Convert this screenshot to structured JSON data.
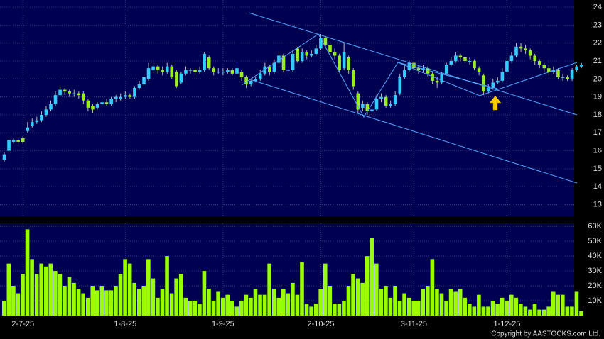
{
  "chart_data": [
    {
      "type": "candlestick",
      "up_color": "#33ccff",
      "down_color": "#99ee22",
      "ylim": [
        12.35,
        24.4
      ],
      "yticks": [
        13,
        14,
        15,
        16,
        17,
        18,
        19,
        20,
        21,
        22,
        23,
        24
      ],
      "grid": true,
      "open": [
        15.5,
        16.0,
        16.5,
        16.6,
        16.7,
        17.1,
        17.4,
        17.6,
        17.7,
        18.0,
        18.3,
        18.6,
        19.1,
        19.4,
        19.3,
        19.2,
        19.2,
        19.2,
        18.8,
        18.5,
        18.4,
        18.6,
        18.7,
        18.6,
        18.9,
        18.9,
        19.0,
        19.1,
        19.0,
        19.5,
        19.7,
        20.0,
        20.5,
        20.7,
        20.5,
        20.4,
        20.7,
        20.4,
        19.8,
        20.3,
        20.5,
        20.5,
        20.4,
        20.5,
        21.2,
        20.6,
        20.4,
        20.4,
        20.4,
        20.5,
        20.3,
        20.4,
        20.1,
        19.7,
        19.9,
        20.0,
        20.3,
        20.7,
        20.4,
        20.9,
        21.3,
        20.5,
        20.5,
        21.7,
        21.0,
        21.5,
        21.3,
        21.4,
        21.7,
        22.3,
        21.9,
        21.5,
        21.3,
        20.6,
        21.2,
        20.5,
        19.2,
        18.4,
        18.6,
        18.2,
        18.3,
        18.9,
        19.0,
        18.5,
        18.6,
        19.2,
        20.1,
        20.5,
        20.9,
        20.6,
        20.5,
        20.6,
        20.3,
        19.9,
        19.8,
        20.3,
        20.8,
        21.0,
        21.3,
        21.2,
        21.0,
        21.0,
        20.6,
        20.2,
        19.3,
        19.5,
        19.8,
        19.9,
        20.4,
        21.0,
        21.3,
        21.8,
        21.7,
        21.6,
        21.3,
        21.0,
        20.8,
        20.6,
        20.4,
        20.5,
        20.1,
        20.1,
        20.0,
        20.5,
        20.7
      ],
      "close": [
        15.8,
        16.6,
        16.6,
        16.5,
        16.5,
        17.3,
        17.6,
        17.7,
        18.0,
        18.3,
        18.6,
        19.1,
        19.4,
        19.3,
        19.2,
        19.2,
        19.1,
        18.8,
        18.4,
        18.3,
        18.6,
        18.7,
        18.6,
        18.9,
        19.0,
        19.0,
        19.1,
        19.0,
        19.5,
        19.7,
        20.1,
        20.6,
        20.7,
        20.5,
        20.4,
        20.7,
        20.1,
        19.6,
        20.3,
        20.5,
        20.5,
        20.4,
        20.5,
        21.4,
        20.6,
        20.4,
        20.4,
        20.4,
        20.5,
        20.3,
        20.6,
        20.1,
        19.7,
        19.9,
        20.0,
        20.3,
        20.7,
        20.4,
        20.9,
        21.3,
        20.5,
        20.5,
        21.4,
        21.0,
        21.5,
        21.3,
        21.4,
        21.7,
        22.3,
        21.9,
        21.5,
        21.3,
        20.5,
        21.5,
        20.5,
        19.6,
        18.3,
        18.6,
        18.2,
        18.3,
        18.9,
        19.0,
        18.5,
        18.6,
        19.1,
        20.1,
        20.5,
        20.9,
        20.6,
        20.5,
        20.6,
        20.3,
        19.9,
        19.8,
        20.3,
        20.8,
        21.0,
        21.3,
        21.2,
        21.0,
        21.0,
        20.6,
        20.4,
        19.3,
        19.5,
        19.8,
        19.9,
        20.4,
        21.0,
        21.3,
        21.8,
        21.7,
        21.6,
        21.3,
        21.0,
        20.8,
        20.6,
        20.4,
        20.5,
        20.1,
        20.1,
        20.0,
        20.5,
        20.7,
        20.8
      ],
      "high": [
        15.9,
        16.7,
        16.7,
        16.7,
        16.8,
        17.6,
        17.8,
        17.9,
        18.2,
        18.5,
        18.8,
        19.3,
        19.6,
        19.5,
        19.4,
        19.4,
        19.3,
        19.3,
        18.9,
        18.6,
        18.7,
        18.8,
        18.9,
        19.0,
        19.1,
        19.2,
        19.3,
        19.2,
        19.6,
        19.9,
        20.2,
        20.9,
        20.9,
        20.8,
        20.7,
        20.9,
        20.8,
        20.5,
        20.4,
        20.7,
        20.6,
        20.6,
        20.7,
        21.5,
        21.3,
        20.7,
        20.6,
        20.6,
        20.6,
        20.6,
        20.8,
        20.5,
        20.2,
        20.0,
        20.1,
        20.5,
        20.9,
        20.8,
        21.1,
        21.5,
        21.4,
        20.7,
        21.6,
        21.8,
        21.7,
        21.6,
        21.6,
        21.9,
        22.5,
        22.4,
        22.0,
        21.7,
        21.4,
        22.0,
        21.3,
        20.6,
        19.3,
        18.8,
        18.7,
        18.5,
        19.1,
        19.2,
        19.1,
        18.8,
        19.3,
        20.3,
        20.8,
        21.0,
        21.0,
        20.8,
        20.8,
        20.7,
        20.4,
        20.1,
        20.4,
        20.9,
        21.2,
        21.5,
        21.4,
        21.3,
        21.2,
        21.1,
        20.7,
        20.3,
        19.7,
        20.0,
        20.1,
        20.6,
        21.2,
        21.5,
        22.0,
        22.0,
        21.9,
        21.7,
        21.4,
        21.1,
        20.9,
        20.8,
        20.7,
        20.6,
        20.3,
        20.2,
        20.6,
        20.8,
        20.9
      ],
      "low": [
        15.4,
        15.9,
        16.4,
        16.4,
        16.4,
        17.0,
        17.3,
        17.5,
        17.6,
        17.9,
        18.2,
        18.5,
        19.0,
        19.1,
        19.0,
        19.0,
        18.9,
        18.6,
        18.2,
        18.1,
        18.3,
        18.5,
        18.5,
        18.5,
        18.7,
        18.8,
        18.9,
        18.9,
        18.9,
        19.4,
        19.6,
        19.9,
        20.3,
        20.3,
        20.2,
        20.3,
        20.0,
        19.5,
        19.7,
        20.2,
        20.3,
        20.2,
        20.3,
        20.4,
        20.5,
        20.2,
        20.3,
        20.2,
        20.3,
        20.2,
        20.2,
        19.9,
        19.5,
        19.6,
        19.8,
        19.9,
        20.2,
        20.2,
        20.3,
        20.8,
        20.4,
        20.3,
        20.4,
        20.9,
        20.9,
        21.1,
        21.2,
        21.3,
        21.6,
        21.7,
        21.3,
        21.1,
        20.4,
        20.5,
        20.3,
        19.4,
        18.1,
        18.2,
        18.0,
        18.0,
        18.2,
        18.7,
        18.4,
        18.4,
        18.5,
        19.1,
        20.0,
        20.4,
        20.5,
        20.3,
        20.4,
        20.1,
        19.7,
        19.5,
        19.7,
        20.2,
        20.7,
        20.9,
        21.0,
        20.9,
        20.8,
        20.5,
        20.2,
        19.1,
        19.2,
        19.4,
        19.7,
        19.8,
        20.3,
        20.9,
        21.2,
        21.5,
        21.4,
        21.1,
        20.8,
        20.6,
        20.4,
        20.2,
        20.3,
        20.0,
        19.9,
        19.9,
        19.9,
        20.4,
        20.6
      ]
    },
    {
      "type": "bar",
      "color": "#99ff00",
      "ylim": [
        0,
        62000
      ],
      "yticks": [
        {
          "value": 10000,
          "label": "10K"
        },
        {
          "value": 20000,
          "label": "20K"
        },
        {
          "value": 30000,
          "label": "30K"
        },
        {
          "value": 40000,
          "label": "40K"
        },
        {
          "value": 50000,
          "label": "50K"
        },
        {
          "value": 60000,
          "label": "60K"
        }
      ],
      "grid": true,
      "categories": [
        null,
        null,
        null,
        null,
        "2-7-25",
        null,
        null,
        null,
        null,
        null,
        null,
        null,
        null,
        null,
        null,
        null,
        null,
        null,
        null,
        null,
        null,
        null,
        null,
        null,
        null,
        null,
        "1-8-25",
        null,
        null,
        null,
        null,
        null,
        null,
        null,
        null,
        null,
        null,
        null,
        null,
        null,
        null,
        null,
        null,
        null,
        null,
        null,
        null,
        "1-9-25",
        null,
        null,
        null,
        null,
        null,
        null,
        null,
        null,
        null,
        null,
        null,
        null,
        null,
        null,
        null,
        null,
        null,
        null,
        null,
        null,
        "2-10-25",
        null,
        null,
        null,
        null,
        null,
        null,
        null,
        null,
        null,
        null,
        null,
        null,
        null,
        null,
        null,
        null,
        null,
        null,
        null,
        "3-11-25",
        null,
        null,
        null,
        null,
        null,
        null,
        null,
        null,
        null,
        null,
        null,
        null,
        null,
        null,
        null,
        null,
        null,
        null,
        null,
        "1-12-25",
        null,
        null,
        null,
        null,
        null,
        null,
        null,
        null,
        null,
        null,
        null,
        null,
        null,
        null,
        null,
        null
      ],
      "values": [
        10000,
        35000,
        20000,
        15000,
        28000,
        58000,
        38000,
        28000,
        35000,
        33000,
        35000,
        30000,
        28000,
        20000,
        26000,
        22000,
        18000,
        15000,
        12000,
        20000,
        17000,
        20000,
        17000,
        17000,
        20000,
        28000,
        38000,
        35000,
        22000,
        18000,
        20000,
        38000,
        25000,
        12000,
        18000,
        40000,
        15000,
        25000,
        28000,
        12000,
        10000,
        10000,
        8000,
        30000,
        18000,
        10000,
        16000,
        12000,
        14000,
        10000,
        6000,
        10000,
        14000,
        12000,
        18000,
        14000,
        14000,
        35000,
        18000,
        12000,
        18000,
        15000,
        22000,
        14000,
        36000,
        8000,
        6000,
        8000,
        18000,
        35000,
        20000,
        8000,
        8000,
        10000,
        20000,
        28000,
        25000,
        22000,
        40000,
        52000,
        35000,
        18000,
        20000,
        12000,
        20000,
        10000,
        15000,
        12000,
        10000,
        10000,
        18000,
        20000,
        38000,
        18000,
        15000,
        10000,
        18000,
        16000,
        18000,
        12000,
        8000,
        6000,
        14000,
        6000,
        6000,
        10000,
        8000,
        12000,
        10000,
        14000,
        12000,
        8000,
        6000,
        4000,
        8000,
        4000,
        4000,
        6000,
        16000,
        14000,
        14000,
        6000,
        6000,
        16000,
        3000
      ]
    }
  ],
  "footer": "Copyright by AASTOCKS.com Ltd."
}
